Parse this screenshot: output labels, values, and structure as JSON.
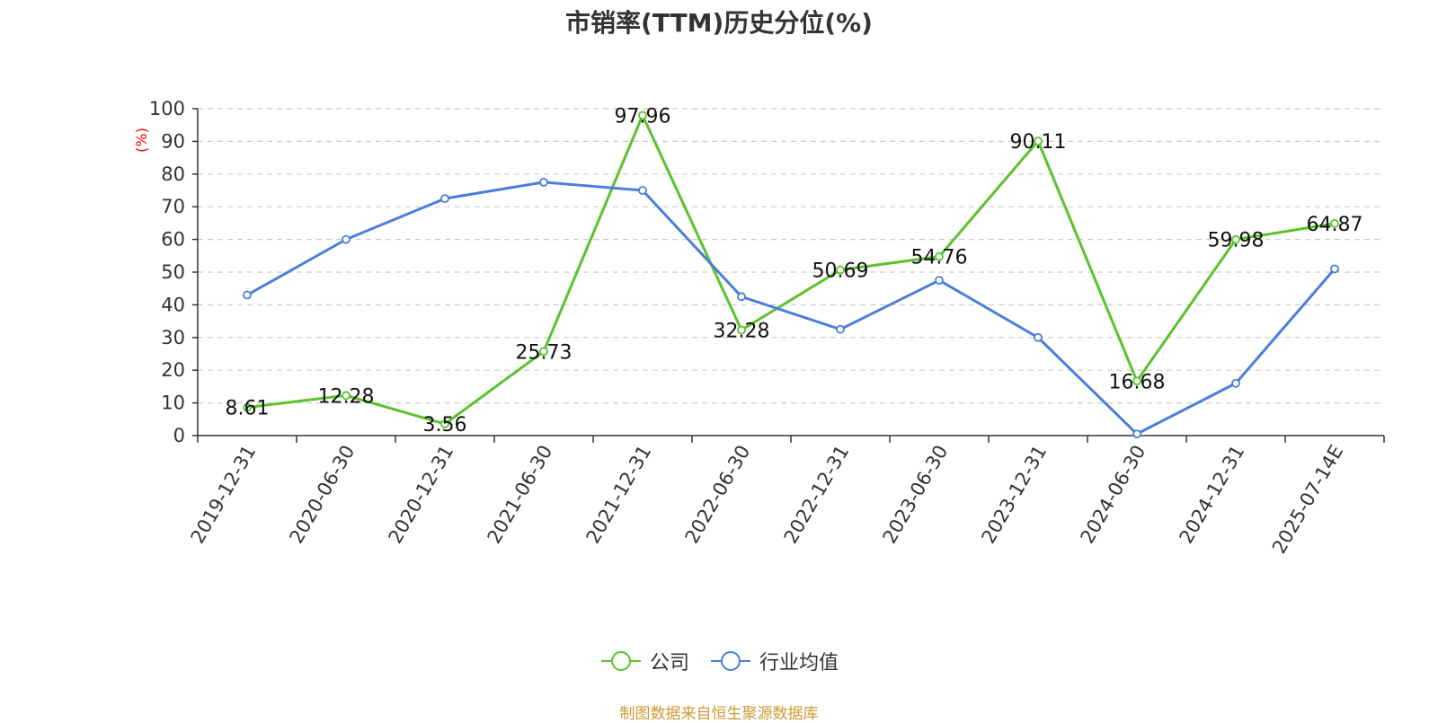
{
  "title": "市销率(TTM)历史分位(%)",
  "source_note": "制图数据来自恒生聚源数据库",
  "colors": {
    "company": "#5ac22c",
    "industry": "#4a7ede",
    "unit_label": "#ff0000",
    "grid": "#cccccc",
    "axis": "#333333",
    "source": "#cc9933"
  },
  "chart_data": {
    "type": "line",
    "title": "市销率(TTM)历史分位(%)",
    "xlabel": "",
    "ylabel": "(%)",
    "ylim": [
      0,
      100
    ],
    "yticks": [
      0,
      10,
      20,
      30,
      40,
      50,
      60,
      70,
      80,
      90,
      100
    ],
    "grid": true,
    "legend_position": "bottom-center",
    "categories": [
      "2019-12-31",
      "2020-06-30",
      "2020-12-31",
      "2021-06-30",
      "2021-12-31",
      "2022-06-30",
      "2022-12-31",
      "2023-06-30",
      "2023-12-31",
      "2024-06-30",
      "2024-12-31",
      "2025-07-14E"
    ],
    "series": [
      {
        "name": "公司",
        "color": "#5ac22c",
        "show_labels": true,
        "values": [
          8.61,
          12.28,
          3.56,
          25.73,
          97.96,
          32.28,
          50.69,
          54.76,
          90.11,
          16.68,
          59.98,
          64.87
        ]
      },
      {
        "name": "行业均值",
        "color": "#4a7ede",
        "show_labels": false,
        "values": [
          43,
          60,
          72.5,
          77.5,
          75,
          42.5,
          32.5,
          47.5,
          30,
          0.5,
          16,
          51
        ]
      }
    ]
  }
}
